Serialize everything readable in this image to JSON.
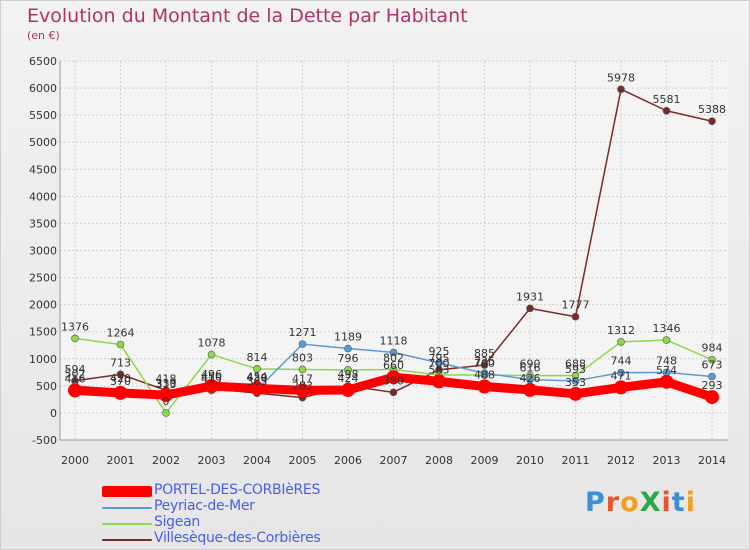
{
  "header": {
    "title": "Evolution du Montant de la Dette par Habitant",
    "unit": "(en €)"
  },
  "logo": {
    "text": "ProXiti",
    "colors": [
      "#3a8fd8",
      "#e8552c",
      "#f0a020",
      "#2aa84a",
      "#e8552c",
      "#3a8fd8",
      "#f0a020"
    ]
  },
  "chart_data": {
    "type": "line",
    "title": "Evolution du Montant de la Dette par Habitant",
    "subtitle": "(en €)",
    "xlabel": "",
    "ylabel": "",
    "x": [
      "2000",
      "2001",
      "2002",
      "2003",
      "2004",
      "2005",
      "2006",
      "2007",
      "2008",
      "2009",
      "2010",
      "2011",
      "2012",
      "2013",
      "2014"
    ],
    "ylim": [
      -500,
      6500
    ],
    "yticks": [
      -500,
      0,
      500,
      1000,
      1500,
      2000,
      2500,
      3000,
      3500,
      4000,
      4500,
      5000,
      5500,
      6000,
      6500
    ],
    "grid": true,
    "legend_position": "bottom-left",
    "series": [
      {
        "name": "PORTEL-DES-CORBIèRES",
        "color": "#ff0000",
        "values": [
          416,
          370,
          330,
          496,
          454,
          417,
          424,
          660,
          583,
          488,
          426,
          353,
          471,
          574,
          293
        ]
      },
      {
        "name": "Peyriac-de-Mer",
        "color": "#5b9bd5",
        "values": [
          502,
          420,
          313,
          415,
          430,
          1271,
          1189,
          1118,
          925,
          735,
          616,
          593,
          744,
          748,
          673
        ]
      },
      {
        "name": "Sigean",
        "color": "#8cd84a",
        "values": [
          1376,
          1264,
          0,
          1078,
          814,
          803,
          796,
          802,
          700,
          700,
          690,
          688,
          1312,
          1346,
          984
        ]
      },
      {
        "name": "Villesèque-des-Corbières",
        "color": "#7b2a2a",
        "values": [
          594,
          713,
          418,
          450,
          365,
          283,
          498,
          380,
          795,
          885,
          1931,
          1777,
          5978,
          5581,
          5388
        ]
      }
    ]
  }
}
